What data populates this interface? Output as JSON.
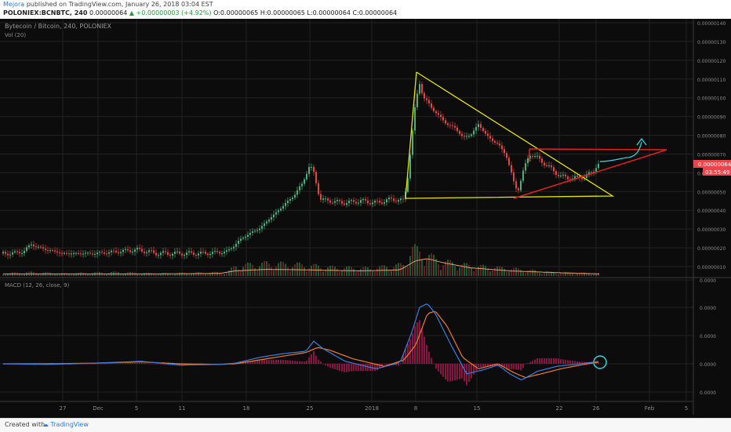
{
  "header": {
    "author": "Mejora",
    "published": "published on TradingView.com, January 26, 2018 03:04 EST",
    "symbol": "POLONIEX:BCNBTC, 240",
    "last": "0.00000064",
    "change": "▲ +0.00000003 (+4.92%)",
    "ohlc_o": "O:0.00000065",
    "ohlc_h": "H:0.00000065",
    "ohlc_l": "L:0.00000064",
    "ohlc_c": "C:0.00000064"
  },
  "chart_data": {
    "type": "line",
    "title": "Bytecoin / Bitcoin, 240, POLONIEX",
    "indicator_vol": "Vol (20)",
    "indicator_macd": "MACD (12, 26, close, 9)",
    "x_ticks": [
      "27",
      "Dec",
      "5",
      "11",
      "18",
      "25",
      "2018",
      "8",
      "15",
      "22",
      "26",
      "Feb",
      "5"
    ],
    "y_ticks": [
      "0.00000140",
      "0.00000130",
      "0.00000120",
      "0.00000110",
      "0.00000100",
      "0.00000090",
      "0.00000080",
      "0.00000070",
      "0.00000060",
      "0.00000050",
      "0.00000040",
      "0.00000030",
      "0.00000020",
      "0.00000010"
    ],
    "macd_ticks": [
      "0.0000",
      "0.0000",
      "0.0000",
      "0.0000",
      "0.0000"
    ],
    "price_badge": "0.00000064",
    "time_badge": "03:55:49",
    "ylim": [
      5e-08,
      1.43e-06
    ],
    "price": [
      [
        0,
        17
      ],
      [
        15,
        17
      ],
      [
        30,
        18
      ],
      [
        40,
        22
      ],
      [
        50,
        20
      ],
      [
        60,
        19
      ],
      [
        80,
        17
      ],
      [
        100,
        17
      ],
      [
        120,
        17
      ],
      [
        150,
        18
      ],
      [
        175,
        19
      ],
      [
        200,
        17
      ],
      [
        230,
        17
      ],
      [
        260,
        17
      ],
      [
        290,
        18
      ],
      [
        300,
        22
      ],
      [
        315,
        27
      ],
      [
        330,
        30
      ],
      [
        345,
        36
      ],
      [
        355,
        40
      ],
      [
        365,
        44
      ],
      [
        375,
        48
      ],
      [
        385,
        54
      ],
      [
        395,
        64
      ],
      [
        400,
        60
      ],
      [
        408,
        46
      ],
      [
        420,
        45
      ],
      [
        440,
        44
      ],
      [
        460,
        45
      ],
      [
        480,
        44
      ],
      [
        500,
        46
      ],
      [
        515,
        45
      ],
      [
        520,
        58
      ],
      [
        525,
        78
      ],
      [
        530,
        98
      ],
      [
        535,
        108
      ],
      [
        540,
        100
      ],
      [
        550,
        95
      ],
      [
        560,
        90
      ],
      [
        570,
        86
      ],
      [
        580,
        84
      ],
      [
        590,
        79
      ],
      [
        600,
        80
      ],
      [
        610,
        86
      ],
      [
        620,
        80
      ],
      [
        635,
        75
      ],
      [
        645,
        70
      ],
      [
        655,
        55
      ],
      [
        660,
        50
      ],
      [
        668,
        62
      ],
      [
        675,
        70
      ],
      [
        685,
        68
      ],
      [
        700,
        63
      ],
      [
        715,
        58
      ],
      [
        730,
        57
      ],
      [
        745,
        58
      ],
      [
        755,
        60
      ],
      [
        762,
        65
      ],
      [
        765,
        64
      ]
    ],
    "volume": [
      [
        0,
        2
      ],
      [
        40,
        3
      ],
      [
        80,
        2
      ],
      [
        150,
        3
      ],
      [
        200,
        2
      ],
      [
        290,
        3
      ],
      [
        300,
        8
      ],
      [
        340,
        10
      ],
      [
        380,
        9
      ],
      [
        420,
        7
      ],
      [
        470,
        6
      ],
      [
        515,
        9
      ],
      [
        525,
        22
      ],
      [
        540,
        18
      ],
      [
        560,
        12
      ],
      [
        600,
        8
      ],
      [
        650,
        6
      ],
      [
        700,
        3
      ],
      [
        765,
        2
      ]
    ],
    "vol_ma": [
      [
        0,
        2
      ],
      [
        100,
        2
      ],
      [
        200,
        2
      ],
      [
        280,
        2.5
      ],
      [
        300,
        5
      ],
      [
        340,
        6.5
      ],
      [
        390,
        6
      ],
      [
        460,
        5
      ],
      [
        510,
        6
      ],
      [
        530,
        15
      ],
      [
        545,
        17
      ],
      [
        565,
        13
      ],
      [
        600,
        8
      ],
      [
        650,
        5
      ],
      [
        720,
        3
      ],
      [
        765,
        2
      ]
    ],
    "macd": [
      [
        0,
        0
      ],
      [
        60,
        -0.05
      ],
      [
        120,
        0.05
      ],
      [
        180,
        0.2
      ],
      [
        230,
        -0.1
      ],
      [
        280,
        -0.05
      ],
      [
        300,
        0.05
      ],
      [
        330,
        0.5
      ],
      [
        360,
        0.8
      ],
      [
        390,
        1.0
      ],
      [
        400,
        1.8
      ],
      [
        412,
        1.2
      ],
      [
        440,
        0.2
      ],
      [
        480,
        -0.4
      ],
      [
        510,
        0.1
      ],
      [
        525,
        2.5
      ],
      [
        535,
        4.5
      ],
      [
        545,
        4.8
      ],
      [
        555,
        4.0
      ],
      [
        575,
        1.5
      ],
      [
        595,
        -0.8
      ],
      [
        615,
        -0.5
      ],
      [
        635,
        -0.1
      ],
      [
        650,
        -0.8
      ],
      [
        665,
        -1.3
      ],
      [
        685,
        -0.6
      ],
      [
        710,
        -0.2
      ],
      [
        740,
        0.0
      ],
      [
        765,
        0.2
      ]
    ],
    "signal": [
      [
        0,
        0
      ],
      [
        60,
        0
      ],
      [
        120,
        0.05
      ],
      [
        180,
        0.15
      ],
      [
        230,
        0
      ],
      [
        280,
        -0.05
      ],
      [
        300,
        0
      ],
      [
        330,
        0.3
      ],
      [
        360,
        0.6
      ],
      [
        390,
        0.9
      ],
      [
        405,
        1.3
      ],
      [
        420,
        1.1
      ],
      [
        450,
        0.4
      ],
      [
        490,
        -0.2
      ],
      [
        515,
        0.3
      ],
      [
        530,
        1.5
      ],
      [
        545,
        4.0
      ],
      [
        555,
        4.2
      ],
      [
        570,
        3.0
      ],
      [
        590,
        0.5
      ],
      [
        610,
        -0.4
      ],
      [
        635,
        0
      ],
      [
        655,
        -0.7
      ],
      [
        670,
        -1.1
      ],
      [
        690,
        -0.8
      ],
      [
        715,
        -0.4
      ],
      [
        740,
        -0.1
      ],
      [
        765,
        0.15
      ]
    ]
  }
}
